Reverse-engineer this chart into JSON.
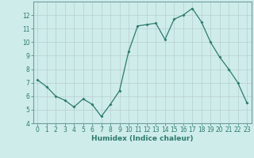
{
  "x": [
    0,
    1,
    2,
    3,
    4,
    5,
    6,
    7,
    8,
    9,
    10,
    11,
    12,
    13,
    14,
    15,
    16,
    17,
    18,
    19,
    20,
    21,
    22,
    23
  ],
  "y": [
    7.2,
    6.7,
    6.0,
    5.7,
    5.2,
    5.8,
    5.4,
    4.5,
    5.4,
    6.4,
    9.3,
    11.2,
    11.3,
    11.4,
    10.2,
    11.7,
    12.0,
    12.5,
    11.5,
    10.0,
    8.9,
    8.0,
    7.0,
    5.5
  ],
  "xlabel": "Humidex (Indice chaleur)",
  "ylim": [
    4,
    13
  ],
  "xlim": [
    -0.5,
    23.5
  ],
  "yticks": [
    4,
    5,
    6,
    7,
    8,
    9,
    10,
    11,
    12
  ],
  "xticks": [
    0,
    1,
    2,
    3,
    4,
    5,
    6,
    7,
    8,
    9,
    10,
    11,
    12,
    13,
    14,
    15,
    16,
    17,
    18,
    19,
    20,
    21,
    22,
    23
  ],
  "line_color": "#2d7b6b",
  "marker": "D",
  "marker_size": 2.0,
  "bg_color": "#ceecea",
  "grid_color": "#b8cece",
  "spine_color": "#6e9e9e",
  "font_color": "#2d7b6b",
  "xlabel_fontsize": 6.5,
  "tick_fontsize": 5.5
}
